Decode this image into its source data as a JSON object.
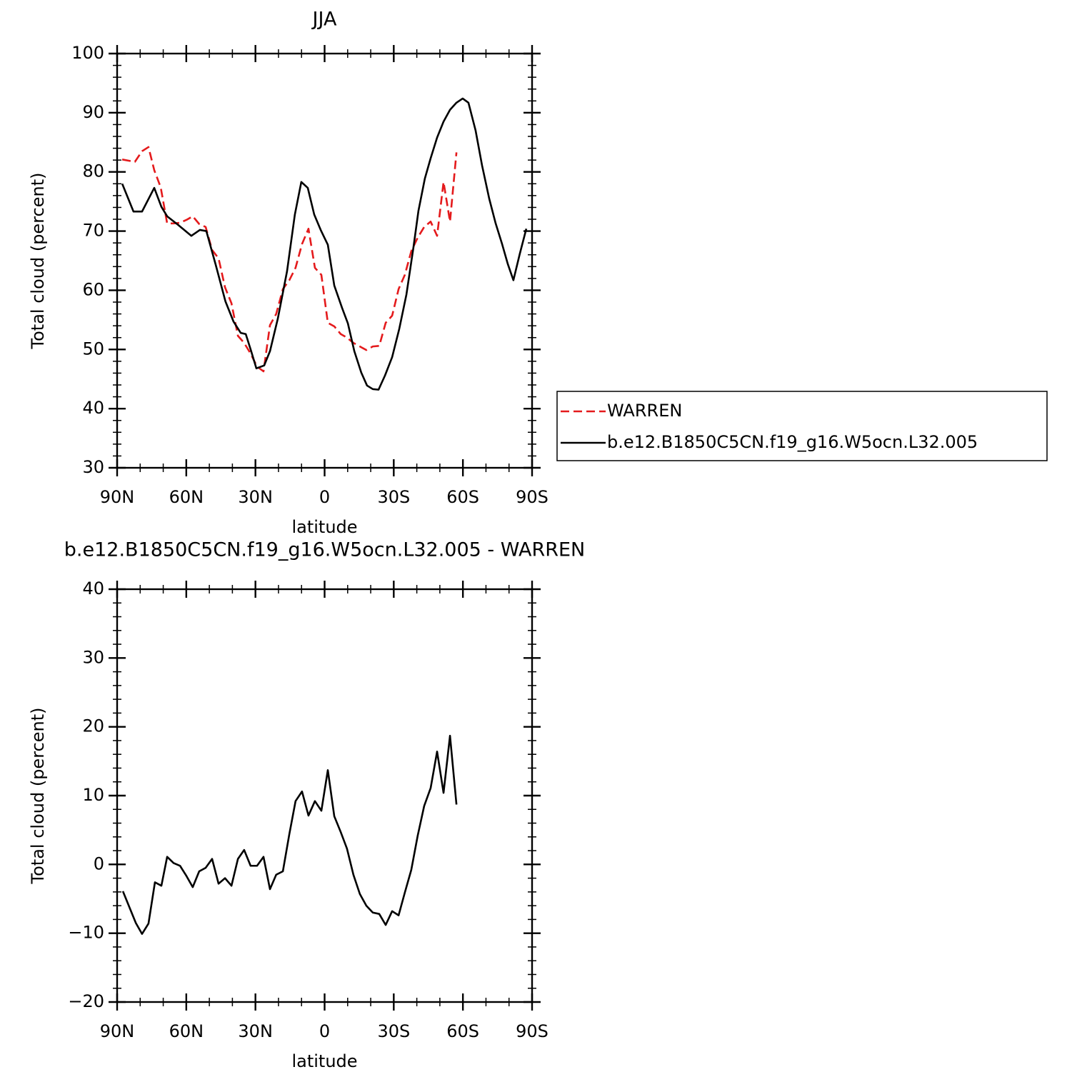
{
  "chart_data": [
    {
      "type": "line",
      "title": "JJA",
      "xlabel": "latitude",
      "ylabel": "Total cloud (percent)",
      "xlim": [
        90,
        -90
      ],
      "ylim": [
        30,
        100
      ],
      "xticks": [
        {
          "value": 90,
          "label": "90N"
        },
        {
          "value": 60,
          "label": "60N"
        },
        {
          "value": 30,
          "label": "30N"
        },
        0,
        {
          "value": -30,
          "label": "30S"
        },
        {
          "value": -60,
          "label": "60S"
        },
        {
          "value": -90,
          "label": "90S"
        }
      ],
      "yticks": [
        30,
        40,
        50,
        60,
        70,
        80,
        90,
        100
      ],
      "xminorticks": [
        80,
        70,
        50,
        40,
        20,
        10,
        -10,
        -20,
        -40,
        -50,
        -70,
        -80
      ],
      "yminorticks": [
        32,
        34,
        36,
        38,
        42,
        44,
        46,
        48,
        52,
        54,
        56,
        58,
        62,
        64,
        66,
        68,
        72,
        74,
        76,
        78,
        82,
        84,
        86,
        88,
        92,
        94,
        96,
        98
      ],
      "legend": "right",
      "series": [
        {
          "name": "WARREN",
          "color": "#e41a1c",
          "linestyle": "dashed",
          "x": [
            87.8,
            82.3,
            79.2,
            76.4,
            73.9,
            71.1,
            68.3,
            65.5,
            62.7,
            59.9,
            57.2,
            54.4,
            51.6,
            48.8,
            46.0,
            43.2,
            40.4,
            37.6,
            34.9,
            32.1,
            29.3,
            26.5,
            23.7,
            21.0,
            18.1,
            15.3,
            12.6,
            9.8,
            7.0,
            4.2,
            1.4,
            -1.4,
            -4.2,
            -7.0,
            -9.7,
            -12.5,
            -15.3,
            -18.1,
            -20.9,
            -23.7,
            -26.5,
            -29.3,
            -32.1,
            -34.8,
            -37.6,
            -40.4,
            -43.2,
            -46.0,
            -48.8,
            -51.6,
            -54.4,
            -57.2
          ],
          "values": [
            82.1,
            81.7,
            83.5,
            84.2,
            80.3,
            77.4,
            71.3,
            71.3,
            71.4,
            71.9,
            72.5,
            71.2,
            70.7,
            66.8,
            65.4,
            60.5,
            57.8,
            52.3,
            51.1,
            49.3,
            47.1,
            46.3,
            54.1,
            56.0,
            60.2,
            61.7,
            63.8,
            67.8,
            70.4,
            63.8,
            62.6,
            54.5,
            53.9,
            52.6,
            52.0,
            51.1,
            50.5,
            49.9,
            50.5,
            50.6,
            54.5,
            55.7,
            60.2,
            62.6,
            66.6,
            68.9,
            70.7,
            71.6,
            69.2,
            78.3,
            71.6,
            83.3
          ]
        },
        {
          "name": "b.e12.B1850C5CN.f19_g16.W5ocn.L32.005",
          "color": "#000000",
          "linestyle": "solid",
          "x": [
            87.8,
            82.9,
            79.2,
            73.9,
            70.8,
            68.3,
            63.4,
            57.8,
            54.1,
            51.3,
            47.3,
            43.0,
            39.5,
            36.4,
            34.2,
            32.0,
            29.6,
            26.2,
            23.7,
            20.3,
            16.3,
            12.9,
            10.1,
            7.3,
            4.5,
            1.7,
            -1.4,
            -4.2,
            -7.6,
            -10.1,
            -12.9,
            -15.9,
            -18.4,
            -20.9,
            -23.4,
            -26.2,
            -29.3,
            -32.4,
            -35.5,
            -38.6,
            -40.7,
            -43.5,
            -46.0,
            -48.8,
            -51.6,
            -54.4,
            -57.2,
            -59.9,
            -62.4,
            -65.5,
            -68.3,
            -71.4,
            -74.2,
            -77.0,
            -79.5,
            -81.9,
            -84.7,
            -87.5
          ],
          "values": [
            78.0,
            73.3,
            73.3,
            77.3,
            74.1,
            72.5,
            71.0,
            69.2,
            70.2,
            70.0,
            64.4,
            58.1,
            54.7,
            52.8,
            52.6,
            49.9,
            46.8,
            47.3,
            49.7,
            55.2,
            63.2,
            72.8,
            78.3,
            77.3,
            72.8,
            70.2,
            67.7,
            60.8,
            57.0,
            54.4,
            49.7,
            46.1,
            43.9,
            43.3,
            43.2,
            45.6,
            48.7,
            53.5,
            59.3,
            67.4,
            73.4,
            78.9,
            82.3,
            85.8,
            88.5,
            90.5,
            91.7,
            92.4,
            91.7,
            87.0,
            81.1,
            75.5,
            71.3,
            67.8,
            64.4,
            61.7,
            66.2,
            70.4
          ]
        }
      ]
    },
    {
      "type": "line",
      "title": "b.e12.B1850C5CN.f19_g16.W5ocn.L32.005 - WARREN",
      "xlabel": "latitude",
      "ylabel": "Total cloud (percent)",
      "xlim": [
        90,
        -90
      ],
      "ylim": [
        -20,
        40
      ],
      "xticks": [
        {
          "value": 90,
          "label": "90N"
        },
        {
          "value": 60,
          "label": "60N"
        },
        {
          "value": 30,
          "label": "30N"
        },
        0,
        {
          "value": -30,
          "label": "30S"
        },
        {
          "value": -60,
          "label": "60S"
        },
        {
          "value": -90,
          "label": "90S"
        }
      ],
      "yticks": [
        {
          "value": -20,
          "label": "−20"
        },
        {
          "value": -10,
          "label": "−10"
        },
        0,
        10,
        20,
        30,
        40
      ],
      "xminorticks": [
        80,
        70,
        50,
        40,
        20,
        10,
        -10,
        -20,
        -40,
        -50,
        -70,
        -80
      ],
      "yminorticks": [
        -18,
        -16,
        -14,
        -12,
        -8,
        -6,
        -4,
        -2,
        2,
        4,
        6,
        8,
        12,
        14,
        16,
        18,
        22,
        24,
        26,
        28,
        32,
        34,
        36,
        38
      ],
      "series": [
        {
          "color": "#000000",
          "linestyle": "solid",
          "x": [
            87.5,
            81.9,
            79.2,
            76.4,
            73.6,
            70.8,
            68.3,
            65.5,
            62.7,
            59.9,
            57.2,
            54.4,
            51.6,
            48.8,
            46.0,
            43.2,
            40.4,
            37.6,
            34.9,
            32.1,
            29.3,
            26.5,
            23.7,
            21.0,
            18.1,
            15.3,
            12.6,
            9.8,
            7.0,
            4.2,
            1.4,
            -1.4,
            -4.2,
            -7.0,
            -9.7,
            -12.5,
            -15.3,
            -18.1,
            -20.9,
            -23.7,
            -26.5,
            -29.3,
            -32.1,
            -34.8,
            -37.6,
            -40.4,
            -43.2,
            -46.0,
            -48.8,
            -51.6,
            -54.4,
            -57.2
          ],
          "values": [
            -3.9,
            -8.5,
            -10.1,
            -8.6,
            -2.6,
            -3.1,
            1.1,
            0.2,
            -0.2,
            -1.7,
            -3.3,
            -1.0,
            -0.5,
            0.8,
            -2.8,
            -2.0,
            -3.1,
            0.8,
            2.1,
            -0.2,
            -0.2,
            1.1,
            -3.6,
            -1.5,
            -1.0,
            4.4,
            9.2,
            10.6,
            7.1,
            9.2,
            7.8,
            13.7,
            7.0,
            4.7,
            2.3,
            -1.5,
            -4.3,
            -6.0,
            -7.0,
            -7.2,
            -8.8,
            -6.8,
            -7.4,
            -4.1,
            -0.8,
            4.2,
            8.5,
            11.1,
            16.4,
            10.4,
            18.7,
            8.7
          ]
        }
      ]
    }
  ]
}
